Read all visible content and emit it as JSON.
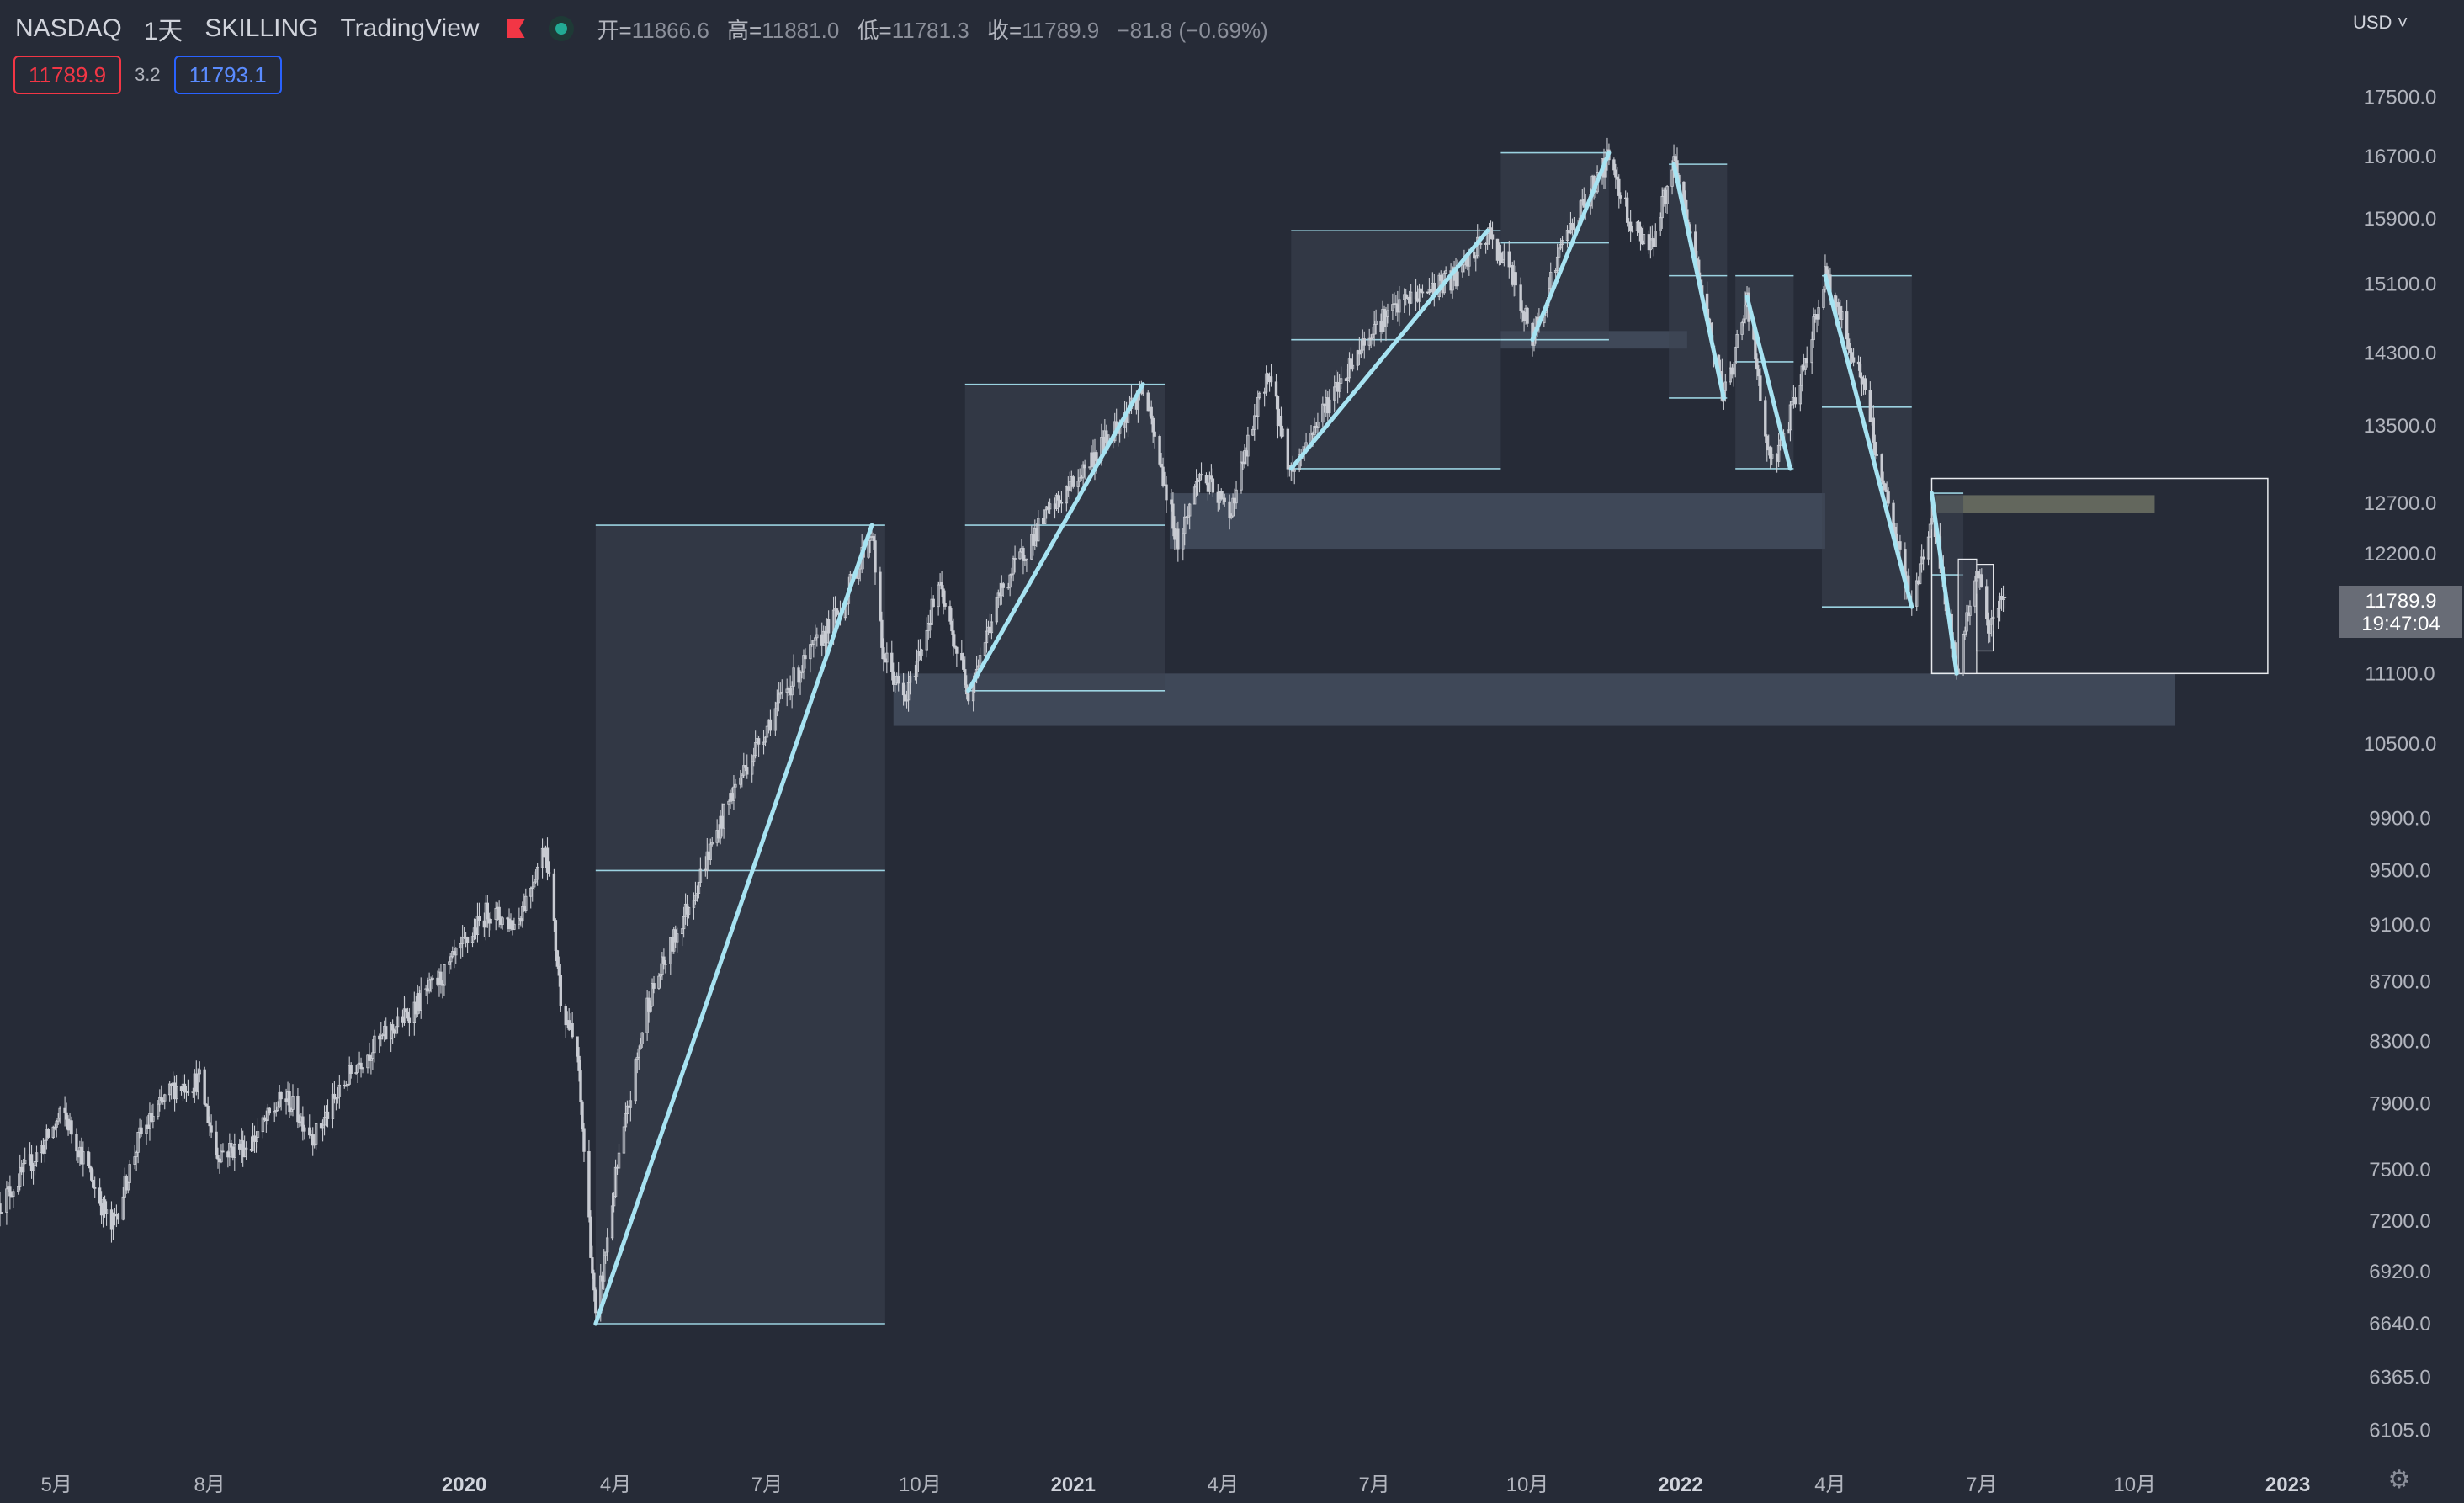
{
  "header": {
    "symbol": "NASDAQ",
    "interval": "1天",
    "broker": "SKILLING",
    "platform": "TradingView",
    "flag_icon": "flag-icon",
    "status_icon": "market-open-dot-icon",
    "open_label": "开=",
    "open": "11866.6",
    "high_label": "高=",
    "high": "11881.0",
    "low_label": "低=",
    "low": "11781.3",
    "close_label": "收=",
    "close": "11789.9",
    "change": "−81.8 (−0.69%)"
  },
  "quotes": {
    "sell": "11789.9",
    "spread": "3.2",
    "buy": "11793.1"
  },
  "price_axis": {
    "currency": "USD",
    "last_price": "11789.9",
    "countdown": "19:47:04"
  },
  "colors": {
    "background": "#262b37",
    "candle": "#c8cbd2",
    "trend_line": "#a7e3f2",
    "zone": "#424b5c",
    "supply_zone": "#6f7264",
    "sell": "#f23645",
    "buy": "#2962ff"
  },
  "chart_data": {
    "type": "candlestick",
    "y_scale": "log",
    "ylim": [
      5950,
      18900
    ],
    "y_ticks": [
      6105,
      6365,
      6640,
      6920,
      7200,
      7500,
      7900,
      8300,
      8700,
      9100,
      9500,
      9900,
      10500,
      11100,
      12200,
      12700,
      13500,
      14300,
      15100,
      15900,
      16700,
      17500
    ],
    "y_tick_labels": [
      "6105.0",
      "6365.0",
      "6640.0",
      "6920.0",
      "7200.0",
      "7500.0",
      "7900.0",
      "8300.0",
      "8700.0",
      "9100.0",
      "9500.0",
      "9900.0",
      "10500.0",
      "11100.0",
      "12200.0",
      "12700.0",
      "13500.0",
      "14300.0",
      "15100.0",
      "15900.0",
      "16700.0",
      "17500.0"
    ],
    "x_range": [
      "2019-03-28",
      "2023-01-28"
    ],
    "x_ticks": [
      {
        "date": "2019-05-01",
        "label": "5月",
        "year": false
      },
      {
        "date": "2019-08-01",
        "label": "8月",
        "year": false
      },
      {
        "date": "2020-01-01",
        "label": "2020",
        "year": true
      },
      {
        "date": "2020-04-01",
        "label": "4月",
        "year": false
      },
      {
        "date": "2020-07-01",
        "label": "7月",
        "year": false
      },
      {
        "date": "2020-10-01",
        "label": "10月",
        "year": false
      },
      {
        "date": "2021-01-01",
        "label": "2021",
        "year": true
      },
      {
        "date": "2021-04-01",
        "label": "4月",
        "year": false
      },
      {
        "date": "2021-07-01",
        "label": "7月",
        "year": false
      },
      {
        "date": "2021-10-01",
        "label": "10月",
        "year": false
      },
      {
        "date": "2022-01-01",
        "label": "2022",
        "year": true
      },
      {
        "date": "2022-04-01",
        "label": "4月",
        "year": false
      },
      {
        "date": "2022-07-01",
        "label": "7月",
        "year": false
      },
      {
        "date": "2022-10-01",
        "label": "10月",
        "year": false
      },
      {
        "date": "2023-01-01",
        "label": "2023",
        "year": true
      }
    ],
    "price_path": [
      [
        "2019-03-28",
        7300
      ],
      [
        "2019-04-20",
        7600
      ],
      [
        "2019-05-05",
        7850
      ],
      [
        "2019-05-20",
        7500
      ],
      [
        "2019-06-03",
        7150
      ],
      [
        "2019-06-20",
        7700
      ],
      [
        "2019-07-10",
        8000
      ],
      [
        "2019-07-26",
        8050
      ],
      [
        "2019-08-05",
        7600
      ],
      [
        "2019-08-25",
        7650
      ],
      [
        "2019-09-15",
        7950
      ],
      [
        "2019-10-03",
        7700
      ],
      [
        "2019-10-28",
        8150
      ],
      [
        "2019-11-25",
        8450
      ],
      [
        "2019-12-20",
        8750
      ],
      [
        "2020-01-15",
        9200
      ],
      [
        "2020-02-01",
        9100
      ],
      [
        "2020-02-19",
        9700
      ],
      [
        "2020-02-28",
        8600
      ],
      [
        "2020-03-09",
        8200
      ],
      [
        "2020-03-16",
        7200
      ],
      [
        "2020-03-20",
        6650
      ],
      [
        "2020-04-01",
        7450
      ],
      [
        "2020-04-20",
        8550
      ],
      [
        "2020-05-20",
        9400
      ],
      [
        "2020-06-10",
        10100
      ],
      [
        "2020-07-10",
        10900
      ],
      [
        "2020-08-15",
        11700
      ],
      [
        "2020-09-02",
        12450
      ],
      [
        "2020-09-08",
        11300
      ],
      [
        "2020-09-22",
        10850
      ],
      [
        "2020-10-12",
        11900
      ],
      [
        "2020-10-30",
        10950
      ],
      [
        "2020-11-20",
        11900
      ],
      [
        "2020-12-15",
        12550
      ],
      [
        "2021-01-10",
        13100
      ],
      [
        "2021-02-12",
        13900
      ],
      [
        "2021-03-05",
        12300
      ],
      [
        "2021-03-18",
        13000
      ],
      [
        "2021-04-05",
        12600
      ],
      [
        "2021-04-28",
        14100
      ],
      [
        "2021-05-12",
        13000
      ],
      [
        "2021-06-01",
        13700
      ],
      [
        "2021-06-30",
        14600
      ],
      [
        "2021-07-20",
        14900
      ],
      [
        "2021-08-20",
        15200
      ],
      [
        "2021-09-07",
        15700
      ],
      [
        "2021-09-20",
        15300
      ],
      [
        "2021-10-04",
        14450
      ],
      [
        "2021-10-22",
        15600
      ],
      [
        "2021-11-19",
        16700
      ],
      [
        "2021-12-03",
        15800
      ],
      [
        "2021-12-15",
        15600
      ],
      [
        "2021-12-28",
        16600
      ],
      [
        "2022-01-10",
        15400
      ],
      [
        "2022-01-27",
        13800
      ],
      [
        "2022-02-10",
        14900
      ],
      [
        "2022-02-24",
        13050
      ],
      [
        "2022-03-10",
        13700
      ],
      [
        "2022-03-29",
        15200
      ],
      [
        "2022-04-20",
        14000
      ],
      [
        "2022-05-05",
        12700
      ],
      [
        "2022-05-20",
        11700
      ],
      [
        "2022-06-01",
        12600
      ],
      [
        "2022-06-16",
        11100
      ],
      [
        "2022-06-28",
        12100
      ],
      [
        "2022-07-05",
        11500
      ],
      [
        "2022-07-15",
        11789.9
      ]
    ],
    "trend_lines": [
      {
        "from": [
          "2020-03-20",
          6640
        ],
        "to": [
          "2020-09-02",
          12480
        ]
      },
      {
        "from": [
          "2020-10-30",
          10950
        ],
        "to": [
          "2021-02-12",
          13950
        ]
      },
      {
        "from": [
          "2021-05-12",
          13050
        ],
        "to": [
          "2021-09-07",
          15750
        ]
      },
      {
        "from": [
          "2021-10-04",
          14450
        ],
        "to": [
          "2021-11-19",
          16750
        ]
      },
      {
        "from": [
          "2021-12-28",
          16600
        ],
        "to": [
          "2022-01-27",
          13800
        ]
      },
      {
        "from": [
          "2022-02-10",
          14950
        ],
        "to": [
          "2022-03-08",
          13050
        ]
      },
      {
        "from": [
          "2022-03-29",
          15200
        ],
        "to": [
          "2022-05-20",
          11700
        ]
      },
      {
        "from": [
          "2022-06-01",
          12800
        ],
        "to": [
          "2022-06-16",
          11100
        ]
      }
    ],
    "boxes": [
      {
        "x": [
          "2020-03-20",
          "2020-09-10"
        ],
        "y": [
          6640,
          12480
        ],
        "level": 9500
      },
      {
        "x": [
          "2020-10-28",
          "2021-02-25"
        ],
        "y": [
          10950,
          13950
        ],
        "level": 12480
      },
      {
        "x": [
          "2021-05-12",
          "2021-09-15"
        ],
        "y": [
          13050,
          15750
        ],
        "level": 14450
      },
      {
        "x": [
          "2021-09-15",
          "2021-11-19"
        ],
        "y": [
          14450,
          16750
        ],
        "level": 15600
      },
      {
        "x": [
          "2021-12-25",
          "2022-01-29"
        ],
        "y": [
          13800,
          16600
        ],
        "level": 15200
      },
      {
        "x": [
          "2022-02-03",
          "2022-03-10"
        ],
        "y": [
          13050,
          15200
        ],
        "level": 14200
      },
      {
        "x": [
          "2022-03-27",
          "2022-05-20"
        ],
        "y": [
          11700,
          15200
        ],
        "level": 13700
      },
      {
        "x": [
          "2022-06-01",
          "2022-06-20"
        ],
        "y": [
          11100,
          12800
        ],
        "level": 12000
      }
    ],
    "zones": [
      {
        "x": [
          "2020-09-15",
          "2022-10-25"
        ],
        "y": [
          10650,
          11100
        ],
        "kind": "demand"
      },
      {
        "x": [
          "2021-02-28",
          "2022-03-29"
        ],
        "y": [
          12250,
          12800
        ],
        "kind": "demand"
      },
      {
        "x": [
          "2021-09-15",
          "2022-01-05"
        ],
        "y": [
          14350,
          14550
        ],
        "kind": "demand"
      },
      {
        "x": [
          "2022-06-03",
          "2022-10-13"
        ],
        "y": [
          12600,
          12780
        ],
        "kind": "supply"
      }
    ],
    "projection_box": {
      "x": [
        "2022-06-01",
        "2022-12-20"
      ],
      "y": [
        11100,
        12950
      ]
    },
    "small_boxes": [
      {
        "x": [
          "2022-06-17",
          "2022-06-28"
        ],
        "y": [
          11100,
          12150
        ]
      },
      {
        "x": [
          "2022-06-28",
          "2022-07-08"
        ],
        "y": [
          11300,
          12100
        ]
      }
    ]
  }
}
